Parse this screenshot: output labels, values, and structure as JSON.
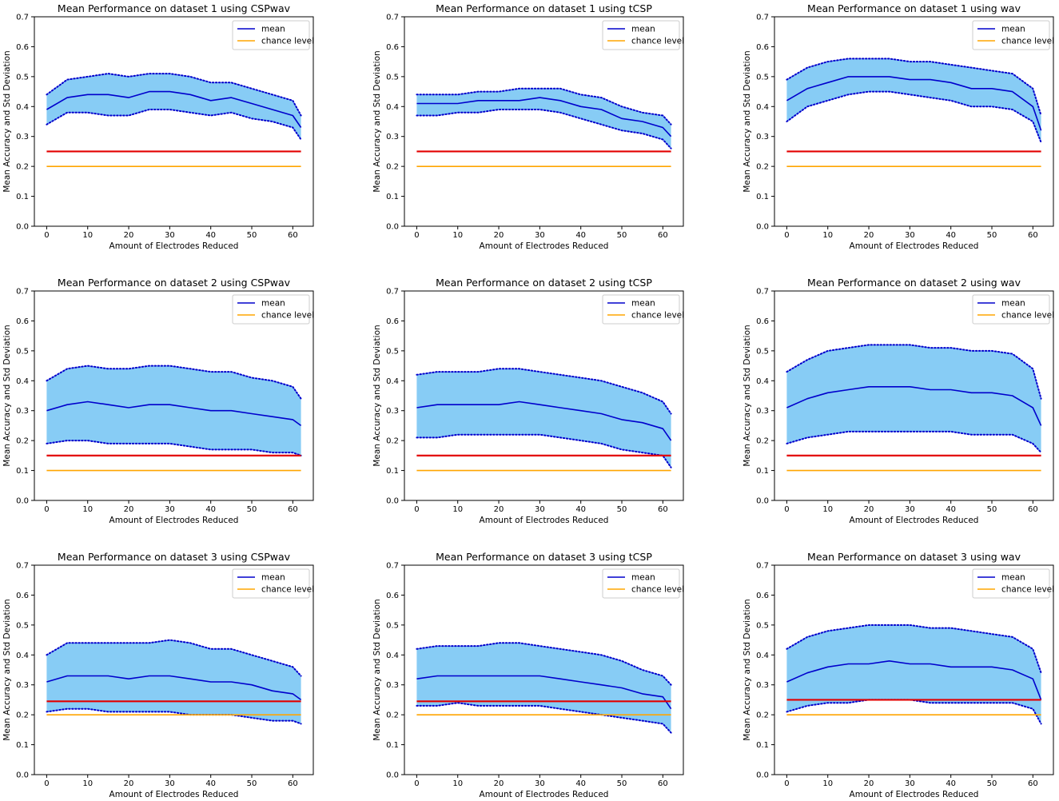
{
  "colors": {
    "mean": "#0000cc",
    "band_fill": "#87ccf5",
    "band_edge": "#0000cc",
    "threshold": "#e30000",
    "chance": "#ffa500"
  },
  "chart_data": [
    {
      "type": "line",
      "title": "Mean Performance on  dataset 1 using CSPwav",
      "xlabel": "Amount of Electrodes Reduced",
      "ylabel": "Mean Accuracy and Std Deviation",
      "xlim": [
        -3,
        65
      ],
      "ylim": [
        0,
        0.7
      ],
      "xticks": [
        0,
        10,
        20,
        30,
        40,
        50,
        60
      ],
      "xtick_labels": [
        "0",
        "10",
        "20",
        "30",
        "40",
        "50",
        "60"
      ],
      "yticks": [
        0,
        0.1,
        0.2,
        0.3,
        0.4,
        0.5,
        0.6,
        0.7
      ],
      "ytick_labels": [
        "0.0",
        "0.1",
        "0.2",
        "0.3",
        "0.4",
        "0.5",
        "0.6",
        "0.7"
      ],
      "legend": {
        "location": "top-right",
        "entries": [
          "mean",
          "chance level"
        ]
      },
      "x": [
        0,
        5,
        10,
        15,
        20,
        25,
        30,
        35,
        40,
        45,
        50,
        55,
        60,
        62
      ],
      "mean": [
        0.39,
        0.43,
        0.44,
        0.44,
        0.43,
        0.45,
        0.45,
        0.44,
        0.42,
        0.43,
        0.41,
        0.39,
        0.37,
        0.33
      ],
      "std_upper": [
        0.44,
        0.49,
        0.5,
        0.51,
        0.5,
        0.51,
        0.51,
        0.5,
        0.48,
        0.48,
        0.46,
        0.44,
        0.42,
        0.37
      ],
      "std_lower": [
        0.34,
        0.38,
        0.38,
        0.37,
        0.37,
        0.39,
        0.39,
        0.38,
        0.37,
        0.38,
        0.36,
        0.35,
        0.33,
        0.29
      ],
      "threshold": 0.25,
      "chance_level": 0.2
    },
    {
      "type": "line",
      "title": "Mean Performance on  dataset 1 using tCSP",
      "xlabel": "Amount of Electrodes Reduced",
      "ylabel": "Mean Accuracy and Std Deviation",
      "xlim": [
        -3,
        65
      ],
      "ylim": [
        0,
        0.7
      ],
      "xticks": [
        0,
        10,
        20,
        30,
        40,
        50,
        60
      ],
      "xtick_labels": [
        "0",
        "10",
        "20",
        "30",
        "40",
        "50",
        "60"
      ],
      "yticks": [
        0,
        0.1,
        0.2,
        0.3,
        0.4,
        0.5,
        0.6,
        0.7
      ],
      "ytick_labels": [
        "0.0",
        "0.1",
        "0.2",
        "0.3",
        "0.4",
        "0.5",
        "0.6",
        "0.7"
      ],
      "legend": {
        "location": "top-right",
        "entries": [
          "mean",
          "chance level"
        ]
      },
      "x": [
        0,
        5,
        10,
        15,
        20,
        25,
        30,
        35,
        40,
        45,
        50,
        55,
        60,
        62
      ],
      "mean": [
        0.41,
        0.41,
        0.41,
        0.42,
        0.42,
        0.42,
        0.43,
        0.42,
        0.4,
        0.39,
        0.36,
        0.35,
        0.33,
        0.3
      ],
      "std_upper": [
        0.44,
        0.44,
        0.44,
        0.45,
        0.45,
        0.46,
        0.46,
        0.46,
        0.44,
        0.43,
        0.4,
        0.38,
        0.37,
        0.34
      ],
      "std_lower": [
        0.37,
        0.37,
        0.38,
        0.38,
        0.39,
        0.39,
        0.39,
        0.38,
        0.36,
        0.34,
        0.32,
        0.31,
        0.29,
        0.26
      ],
      "threshold": 0.25,
      "chance_level": 0.2
    },
    {
      "type": "line",
      "title": "Mean Performance on  dataset 1 using wav",
      "xlabel": "Amount of Electrodes Reduced",
      "ylabel": "Mean Accuracy and Std Deviation",
      "xlim": [
        -3,
        65
      ],
      "ylim": [
        0,
        0.7
      ],
      "xticks": [
        0,
        10,
        20,
        30,
        40,
        50,
        60
      ],
      "xtick_labels": [
        "0",
        "10",
        "20",
        "30",
        "40",
        "50",
        "60"
      ],
      "yticks": [
        0,
        0.1,
        0.2,
        0.3,
        0.4,
        0.5,
        0.6,
        0.7
      ],
      "ytick_labels": [
        "0.0",
        "0.1",
        "0.2",
        "0.3",
        "0.4",
        "0.5",
        "0.6",
        "0.7"
      ],
      "legend": {
        "location": "top-right",
        "entries": [
          "mean",
          "chance level"
        ]
      },
      "x": [
        0,
        5,
        10,
        15,
        20,
        25,
        30,
        35,
        40,
        45,
        50,
        55,
        60,
        62
      ],
      "mean": [
        0.42,
        0.46,
        0.48,
        0.5,
        0.5,
        0.5,
        0.49,
        0.49,
        0.48,
        0.46,
        0.46,
        0.45,
        0.4,
        0.32
      ],
      "std_upper": [
        0.49,
        0.53,
        0.55,
        0.56,
        0.56,
        0.56,
        0.55,
        0.55,
        0.54,
        0.53,
        0.52,
        0.51,
        0.46,
        0.37
      ],
      "std_lower": [
        0.35,
        0.4,
        0.42,
        0.44,
        0.45,
        0.45,
        0.44,
        0.43,
        0.42,
        0.4,
        0.4,
        0.39,
        0.35,
        0.28
      ],
      "threshold": 0.25,
      "chance_level": 0.2
    },
    {
      "type": "line",
      "title": "Mean Performance on  dataset 2 using CSPwav",
      "xlabel": "Amount of Electrodes Reduced",
      "ylabel": "Mean Accuracy and Std Deviation",
      "xlim": [
        -3,
        65
      ],
      "ylim": [
        0,
        0.7
      ],
      "xticks": [
        0,
        10,
        20,
        30,
        40,
        50,
        60
      ],
      "xtick_labels": [
        "0",
        "10",
        "20",
        "30",
        "40",
        "50",
        "60"
      ],
      "yticks": [
        0,
        0.1,
        0.2,
        0.3,
        0.4,
        0.5,
        0.6,
        0.7
      ],
      "ytick_labels": [
        "0.0",
        "0.1",
        "0.2",
        "0.3",
        "0.4",
        "0.5",
        "0.6",
        "0.7"
      ],
      "legend": {
        "location": "top-right",
        "entries": [
          "mean",
          "chance level"
        ]
      },
      "x": [
        0,
        5,
        10,
        15,
        20,
        25,
        30,
        35,
        40,
        45,
        50,
        55,
        60,
        62
      ],
      "mean": [
        0.3,
        0.32,
        0.33,
        0.32,
        0.31,
        0.32,
        0.32,
        0.31,
        0.3,
        0.3,
        0.29,
        0.28,
        0.27,
        0.25
      ],
      "std_upper": [
        0.4,
        0.44,
        0.45,
        0.44,
        0.44,
        0.45,
        0.45,
        0.44,
        0.43,
        0.43,
        0.41,
        0.4,
        0.38,
        0.34
      ],
      "std_lower": [
        0.19,
        0.2,
        0.2,
        0.19,
        0.19,
        0.19,
        0.19,
        0.18,
        0.17,
        0.17,
        0.17,
        0.16,
        0.16,
        0.15
      ],
      "threshold": 0.15,
      "chance_level": 0.1
    },
    {
      "type": "line",
      "title": "Mean Performance on  dataset 2 using tCSP",
      "xlabel": "Amount of Electrodes Reduced",
      "ylabel": "Mean Accuracy and Std Deviation",
      "xlim": [
        -3,
        65
      ],
      "ylim": [
        0,
        0.7
      ],
      "xticks": [
        0,
        10,
        20,
        30,
        40,
        50,
        60
      ],
      "xtick_labels": [
        "0",
        "10",
        "20",
        "30",
        "40",
        "50",
        "60"
      ],
      "yticks": [
        0,
        0.1,
        0.2,
        0.3,
        0.4,
        0.5,
        0.6,
        0.7
      ],
      "ytick_labels": [
        "0.0",
        "0.1",
        "0.2",
        "0.3",
        "0.4",
        "0.5",
        "0.6",
        "0.7"
      ],
      "legend": {
        "location": "top-right",
        "entries": [
          "mean",
          "chance level"
        ]
      },
      "x": [
        0,
        5,
        10,
        15,
        20,
        25,
        30,
        35,
        40,
        45,
        50,
        55,
        60,
        62
      ],
      "mean": [
        0.31,
        0.32,
        0.32,
        0.32,
        0.32,
        0.33,
        0.32,
        0.31,
        0.3,
        0.29,
        0.27,
        0.26,
        0.24,
        0.2
      ],
      "std_upper": [
        0.42,
        0.43,
        0.43,
        0.43,
        0.44,
        0.44,
        0.43,
        0.42,
        0.41,
        0.4,
        0.38,
        0.36,
        0.33,
        0.29
      ],
      "std_lower": [
        0.21,
        0.21,
        0.22,
        0.22,
        0.22,
        0.22,
        0.22,
        0.21,
        0.2,
        0.19,
        0.17,
        0.16,
        0.15,
        0.11
      ],
      "threshold": 0.15,
      "chance_level": 0.1
    },
    {
      "type": "line",
      "title": "Mean Performance on  dataset 2 using wav",
      "xlabel": "Amount of Electrodes Reduced",
      "ylabel": "Mean Accuracy and Std Deviation",
      "xlim": [
        -3,
        65
      ],
      "ylim": [
        0,
        0.7
      ],
      "xticks": [
        0,
        10,
        20,
        30,
        40,
        50,
        60
      ],
      "xtick_labels": [
        "0",
        "10",
        "20",
        "30",
        "40",
        "50",
        "60"
      ],
      "yticks": [
        0,
        0.1,
        0.2,
        0.3,
        0.4,
        0.5,
        0.6,
        0.7
      ],
      "ytick_labels": [
        "0.0",
        "0.1",
        "0.2",
        "0.3",
        "0.4",
        "0.5",
        "0.6",
        "0.7"
      ],
      "legend": {
        "location": "top-right",
        "entries": [
          "mean",
          "chance level"
        ]
      },
      "x": [
        0,
        5,
        10,
        15,
        20,
        25,
        30,
        35,
        40,
        45,
        50,
        55,
        60,
        62
      ],
      "mean": [
        0.31,
        0.34,
        0.36,
        0.37,
        0.38,
        0.38,
        0.38,
        0.37,
        0.37,
        0.36,
        0.36,
        0.35,
        0.31,
        0.25
      ],
      "std_upper": [
        0.43,
        0.47,
        0.5,
        0.51,
        0.52,
        0.52,
        0.52,
        0.51,
        0.51,
        0.5,
        0.5,
        0.49,
        0.44,
        0.34
      ],
      "std_lower": [
        0.19,
        0.21,
        0.22,
        0.23,
        0.23,
        0.23,
        0.23,
        0.23,
        0.23,
        0.22,
        0.22,
        0.22,
        0.19,
        0.16
      ],
      "threshold": 0.15,
      "chance_level": 0.1
    },
    {
      "type": "line",
      "title": "Mean Performance on  dataset 3 using CSPwav",
      "xlabel": "Amount of Electrodes Reduced",
      "ylabel": "Mean Accuracy and Std Deviation",
      "xlim": [
        -3,
        65
      ],
      "ylim": [
        0,
        0.7
      ],
      "xticks": [
        0,
        10,
        20,
        30,
        40,
        50,
        60
      ],
      "xtick_labels": [
        "0",
        "10",
        "20",
        "30",
        "40",
        "50",
        "60"
      ],
      "yticks": [
        0,
        0.1,
        0.2,
        0.3,
        0.4,
        0.5,
        0.6,
        0.7
      ],
      "ytick_labels": [
        "0.0",
        "0.1",
        "0.2",
        "0.3",
        "0.4",
        "0.5",
        "0.6",
        "0.7"
      ],
      "legend": {
        "location": "top-right",
        "entries": [
          "mean",
          "chance level"
        ]
      },
      "x": [
        0,
        5,
        10,
        15,
        20,
        25,
        30,
        35,
        40,
        45,
        50,
        55,
        60,
        62
      ],
      "mean": [
        0.31,
        0.33,
        0.33,
        0.33,
        0.32,
        0.33,
        0.33,
        0.32,
        0.31,
        0.31,
        0.3,
        0.28,
        0.27,
        0.25
      ],
      "std_upper": [
        0.4,
        0.44,
        0.44,
        0.44,
        0.44,
        0.44,
        0.45,
        0.44,
        0.42,
        0.42,
        0.4,
        0.38,
        0.36,
        0.33
      ],
      "std_lower": [
        0.21,
        0.22,
        0.22,
        0.21,
        0.21,
        0.21,
        0.21,
        0.2,
        0.2,
        0.2,
        0.19,
        0.18,
        0.18,
        0.17
      ],
      "threshold": 0.245,
      "chance_level": 0.2
    },
    {
      "type": "line",
      "title": "Mean Performance on  dataset 3 using tCSP",
      "xlabel": "Amount of Electrodes Reduced",
      "ylabel": "Mean Accuracy and Std Deviation",
      "xlim": [
        -3,
        65
      ],
      "ylim": [
        0,
        0.7
      ],
      "xticks": [
        0,
        10,
        20,
        30,
        40,
        50,
        60
      ],
      "xtick_labels": [
        "0",
        "10",
        "20",
        "30",
        "40",
        "50",
        "60"
      ],
      "yticks": [
        0,
        0.1,
        0.2,
        0.3,
        0.4,
        0.5,
        0.6,
        0.7
      ],
      "ytick_labels": [
        "0.0",
        "0.1",
        "0.2",
        "0.3",
        "0.4",
        "0.5",
        "0.6",
        "0.7"
      ],
      "legend": {
        "location": "top-right",
        "entries": [
          "mean",
          "chance level"
        ]
      },
      "x": [
        0,
        5,
        10,
        15,
        20,
        25,
        30,
        35,
        40,
        45,
        50,
        55,
        60,
        62
      ],
      "mean": [
        0.32,
        0.33,
        0.33,
        0.33,
        0.33,
        0.33,
        0.33,
        0.32,
        0.31,
        0.3,
        0.29,
        0.27,
        0.26,
        0.22
      ],
      "std_upper": [
        0.42,
        0.43,
        0.43,
        0.43,
        0.44,
        0.44,
        0.43,
        0.42,
        0.41,
        0.4,
        0.38,
        0.35,
        0.33,
        0.3
      ],
      "std_lower": [
        0.23,
        0.23,
        0.24,
        0.23,
        0.23,
        0.23,
        0.23,
        0.22,
        0.21,
        0.2,
        0.19,
        0.18,
        0.17,
        0.14
      ],
      "threshold": 0.245,
      "chance_level": 0.2
    },
    {
      "type": "line",
      "title": "Mean Performance on  dataset 3 using wav",
      "xlabel": "Amount of Electrodes Reduced",
      "ylabel": "Mean Accuracy and Std Deviation",
      "xlim": [
        -3,
        65
      ],
      "ylim": [
        0,
        0.7
      ],
      "xticks": [
        0,
        10,
        20,
        30,
        40,
        50,
        60
      ],
      "xtick_labels": [
        "0",
        "10",
        "20",
        "30",
        "40",
        "50",
        "60"
      ],
      "yticks": [
        0,
        0.1,
        0.2,
        0.3,
        0.4,
        0.5,
        0.6,
        0.7
      ],
      "ytick_labels": [
        "0.0",
        "0.1",
        "0.2",
        "0.3",
        "0.4",
        "0.5",
        "0.6",
        "0.7"
      ],
      "legend": {
        "location": "top-right",
        "entries": [
          "mean",
          "chance level"
        ]
      },
      "x": [
        0,
        5,
        10,
        15,
        20,
        25,
        30,
        35,
        40,
        45,
        50,
        55,
        60,
        62
      ],
      "mean": [
        0.31,
        0.34,
        0.36,
        0.37,
        0.37,
        0.38,
        0.37,
        0.37,
        0.36,
        0.36,
        0.36,
        0.35,
        0.32,
        0.25
      ],
      "std_upper": [
        0.42,
        0.46,
        0.48,
        0.49,
        0.5,
        0.5,
        0.5,
        0.49,
        0.49,
        0.48,
        0.47,
        0.46,
        0.42,
        0.34
      ],
      "std_lower": [
        0.21,
        0.23,
        0.24,
        0.24,
        0.25,
        0.25,
        0.25,
        0.24,
        0.24,
        0.24,
        0.24,
        0.24,
        0.22,
        0.17
      ],
      "threshold": 0.25,
      "chance_level": 0.2
    }
  ]
}
